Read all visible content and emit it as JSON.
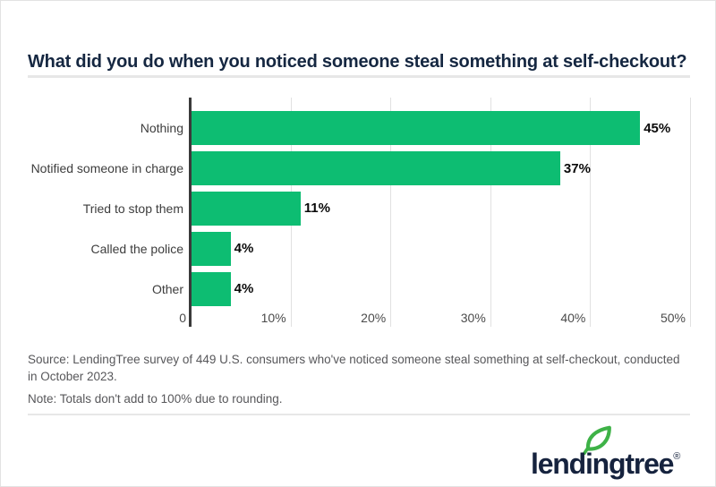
{
  "header": {
    "title": "What did you do when you noticed someone steal something at self-checkout?"
  },
  "chart_data": {
    "type": "bar",
    "orientation": "horizontal",
    "title": "What did you do when you noticed someone steal something at self-checkout?",
    "categories": [
      "Nothing",
      "Notified someone in charge",
      "Tried to stop them",
      "Called the police",
      "Other"
    ],
    "values": [
      45,
      37,
      11,
      4,
      4
    ],
    "value_labels": [
      "45%",
      "37%",
      "11%",
      "4%",
      "4%"
    ],
    "xlabel": "",
    "ylabel": "",
    "xlim": [
      0,
      50
    ],
    "ticks": [
      {
        "value": 0,
        "label": "0"
      },
      {
        "value": 10,
        "label": "10%"
      },
      {
        "value": 20,
        "label": "20%"
      },
      {
        "value": 30,
        "label": "30%"
      },
      {
        "value": 40,
        "label": "40%"
      },
      {
        "value": 50,
        "label": "50%"
      }
    ],
    "grid": "vertical gridlines on",
    "legend": "none",
    "bar_color": "#0dbd72"
  },
  "colors": {
    "bar_green": "#0dbd72",
    "title_navy": "#152741",
    "logo_navy": "#16233e",
    "leaf_green": "#3eb247",
    "gridline_gray": "#e1e1e1",
    "axis_dark": "#3a3a3a"
  },
  "footer": {
    "source": "Source: LendingTree survey of 449 U.S. consumers who've noticed someone steal something at self-checkout, conducted in October 2023.",
    "note": "Note: Totals don't add to 100% due to rounding."
  },
  "logo": {
    "text": "lendingtree",
    "registered_mark": "®"
  }
}
